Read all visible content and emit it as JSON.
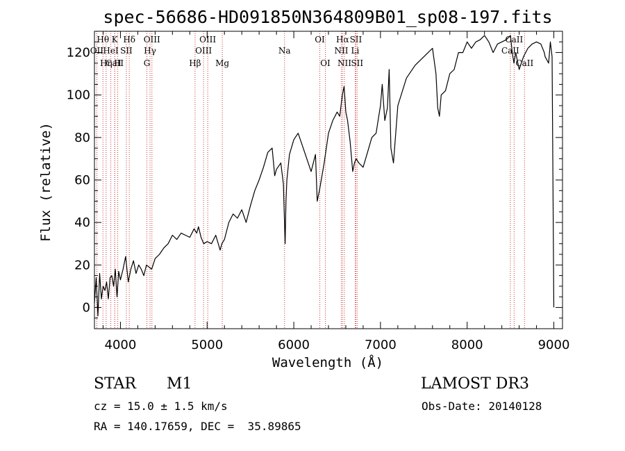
{
  "chart_data": {
    "type": "line",
    "title": "spec-56686-HD091850N364809B01_sp08-197.fits",
    "xlabel": "Wavelength (Å)",
    "ylabel": "Flux (relative)",
    "xlim": [
      3700,
      9100
    ],
    "ylim": [
      -10,
      130
    ],
    "xticks": [
      4000,
      5000,
      6000,
      7000,
      8000,
      9000
    ],
    "yticks": [
      0,
      20,
      40,
      60,
      80,
      100,
      120
    ],
    "line_color": "#000000",
    "marker_color": "#cc3333",
    "series": [
      {
        "name": "flux",
        "x": [
          3700,
          3720,
          3740,
          3760,
          3780,
          3800,
          3820,
          3840,
          3860,
          3880,
          3900,
          3920,
          3940,
          3960,
          3980,
          4000,
          4030,
          4060,
          4090,
          4120,
          4150,
          4180,
          4210,
          4240,
          4270,
          4300,
          4330,
          4360,
          4400,
          4450,
          4500,
          4550,
          4600,
          4650,
          4700,
          4750,
          4800,
          4850,
          4880,
          4900,
          4930,
          4960,
          5000,
          5050,
          5100,
          5150,
          5170,
          5200,
          5250,
          5300,
          5350,
          5400,
          5450,
          5500,
          5550,
          5600,
          5650,
          5700,
          5750,
          5780,
          5800,
          5850,
          5880,
          5900,
          5910,
          5920,
          5950,
          6000,
          6050,
          6100,
          6150,
          6200,
          6250,
          6270,
          6300,
          6350,
          6400,
          6450,
          6500,
          6530,
          6560,
          6580,
          6600,
          6620,
          6650,
          6680,
          6700,
          6720,
          6750,
          6800,
          6850,
          6900,
          6950,
          6980,
          7000,
          7020,
          7050,
          7080,
          7100,
          7120,
          7150,
          7200,
          7300,
          7400,
          7500,
          7550,
          7600,
          7640,
          7660,
          7680,
          7700,
          7750,
          7800,
          7850,
          7900,
          7950,
          8000,
          8050,
          8100,
          8150,
          8200,
          8250,
          8300,
          8350,
          8400,
          8450,
          8500,
          8520,
          8540,
          8560,
          8600,
          8650,
          8700,
          8750,
          8800,
          8850,
          8890,
          8900,
          8940,
          8960,
          8980,
          9000
        ],
        "values": [
          2,
          14,
          -4,
          16,
          4,
          10,
          8,
          12,
          4,
          14,
          15,
          10,
          18,
          5,
          17,
          13,
          18,
          24,
          12,
          18,
          22,
          16,
          20,
          18,
          15,
          20,
          19,
          18,
          23,
          25,
          28,
          30,
          34,
          32,
          35,
          34,
          33,
          37,
          35,
          38,
          33,
          30,
          31,
          30,
          34,
          27,
          30,
          32,
          40,
          44,
          42,
          46,
          40,
          48,
          55,
          60,
          66,
          73,
          75,
          62,
          65,
          68,
          58,
          30,
          50,
          60,
          72,
          79,
          82,
          76,
          70,
          64,
          72,
          50,
          56,
          68,
          82,
          88,
          92,
          90,
          100,
          104,
          92,
          88,
          78,
          64,
          68,
          70,
          68,
          66,
          73,
          80,
          82,
          90,
          95,
          105,
          88,
          94,
          112,
          75,
          68,
          95,
          108,
          114,
          118,
          120,
          122,
          110,
          94,
          90,
          100,
          102,
          110,
          112,
          120,
          120,
          125,
          122,
          125,
          126,
          128,
          125,
          120,
          124,
          125,
          126,
          128,
          120,
          115,
          120,
          112,
          118,
          122,
          124,
          125,
          124,
          120,
          118,
          115,
          125,
          118,
          0
        ]
      }
    ],
    "lines": [
      {
        "name": "Hθ",
        "wl": 3798,
        "row": 1
      },
      {
        "name": "OII",
        "wl": 3727,
        "row": 2
      },
      {
        "name": "CaII",
        "wl": 3934,
        "row": 3
      },
      {
        "name": "K",
        "wl": 3934,
        "row": 1
      },
      {
        "name": "HeI",
        "wl": 3889,
        "row": 2
      },
      {
        "name": "Hη",
        "wl": 3835,
        "row": 3
      },
      {
        "name": "Hδ",
        "wl": 4102,
        "row": 1
      },
      {
        "name": "SII",
        "wl": 4068,
        "row": 2
      },
      {
        "name": "H",
        "wl": 3969,
        "row": 3
      },
      {
        "name": "OIII",
        "wl": 4363,
        "row": 1
      },
      {
        "name": "Hγ",
        "wl": 4341,
        "row": 2
      },
      {
        "name": "G",
        "wl": 4305,
        "row": 3
      },
      {
        "name": "OIII",
        "wl": 5007,
        "row": 1
      },
      {
        "name": "OIII",
        "wl": 4959,
        "row": 2
      },
      {
        "name": "Hβ",
        "wl": 4861,
        "row": 3
      },
      {
        "name": "Mg",
        "wl": 5175,
        "row": 3
      },
      {
        "name": "Na",
        "wl": 5893,
        "row": 2
      },
      {
        "name": "OI",
        "wl": 6300,
        "row": 1
      },
      {
        "name": "OI",
        "wl": 6364,
        "row": 3
      },
      {
        "name": "Hα",
        "wl": 6563,
        "row": 1
      },
      {
        "name": "SII",
        "wl": 6716,
        "row": 1
      },
      {
        "name": "NII",
        "wl": 6548,
        "row": 2
      },
      {
        "name": "Li",
        "wl": 6708,
        "row": 2
      },
      {
        "name": "NII",
        "wl": 6584,
        "row": 3
      },
      {
        "name": "SII",
        "wl": 6731,
        "row": 3
      },
      {
        "name": "CaII",
        "wl": 8542,
        "row": 1
      },
      {
        "name": "CaII",
        "wl": 8498,
        "row": 2
      },
      {
        "name": "CaII",
        "wl": 8662,
        "row": 3
      }
    ]
  },
  "info": {
    "class": "STAR",
    "subclass": "M1",
    "survey": "LAMOST DR3",
    "cz": "cz = 15.0 ± 1.5 km/s",
    "obsdate": "Obs-Date: 20140128",
    "coords": "RA = 140.17659, DEC =  35.89865"
  }
}
